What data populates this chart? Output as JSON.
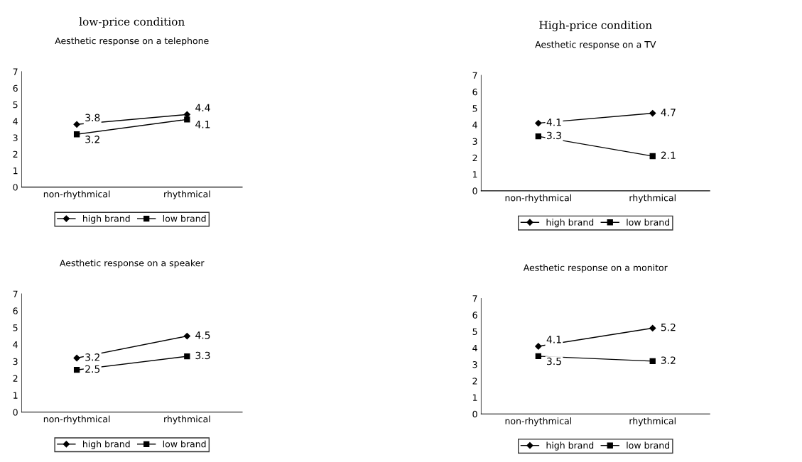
{
  "chart_data": [
    {
      "type": "line",
      "title": "Aesthetic response on a telephone",
      "annotations": [
        "low-price condition"
      ],
      "categories": [
        "non-rhythmical",
        "rhythmical"
      ],
      "ylim": [
        0,
        7
      ],
      "yticks": [
        0,
        1,
        2,
        3,
        4,
        5,
        6,
        7
      ],
      "legend": "bottom",
      "data_labels": true,
      "grid": false,
      "series": [
        {
          "name": "high brand",
          "color": "#000000",
          "marker": "diamond",
          "values": [
            3.8,
            4.4
          ]
        },
        {
          "name": "low brand",
          "color": "#000000",
          "marker": "square",
          "values": [
            3.2,
            4.1
          ]
        }
      ]
    },
    {
      "type": "line",
      "title": "Aesthetic response on a TV",
      "annotations": [
        "High-price condition"
      ],
      "categories": [
        "non-rhythmical",
        "rhythmical"
      ],
      "ylim": [
        0,
        7
      ],
      "yticks": [
        0,
        1,
        2,
        3,
        4,
        5,
        6,
        7
      ],
      "legend": "bottom",
      "data_labels": true,
      "grid": false,
      "series": [
        {
          "name": "high brand",
          "color": "#000000",
          "marker": "diamond",
          "values": [
            4.1,
            4.7
          ]
        },
        {
          "name": "low brand",
          "color": "#000000",
          "marker": "square",
          "values": [
            3.3,
            2.1
          ]
        }
      ]
    },
    {
      "type": "line",
      "title": "Aesthetic response on a speaker",
      "categories": [
        "non-rhythmical",
        "rhythmical"
      ],
      "ylim": [
        0,
        7
      ],
      "yticks": [
        0,
        1,
        2,
        3,
        4,
        5,
        6,
        7
      ],
      "legend": "bottom",
      "data_labels": true,
      "grid": false,
      "series": [
        {
          "name": "high brand",
          "color": "#000000",
          "marker": "diamond",
          "values": [
            3.2,
            4.5
          ]
        },
        {
          "name": "low brand",
          "color": "#000000",
          "marker": "square",
          "values": [
            2.5,
            3.3
          ]
        }
      ]
    },
    {
      "type": "line",
      "title": "Aesthetic response on a monitor",
      "categories": [
        "non-rhythmical",
        "rhythmical"
      ],
      "ylim": [
        0,
        7
      ],
      "yticks": [
        0,
        1,
        2,
        3,
        4,
        5,
        6,
        7
      ],
      "legend": "bottom",
      "data_labels": true,
      "grid": false,
      "series": [
        {
          "name": "high brand",
          "color": "#000000",
          "marker": "diamond",
          "values": [
            4.1,
            5.2
          ]
        },
        {
          "name": "low brand",
          "color": "#000000",
          "marker": "square",
          "values": [
            3.5,
            3.2
          ]
        }
      ]
    }
  ]
}
